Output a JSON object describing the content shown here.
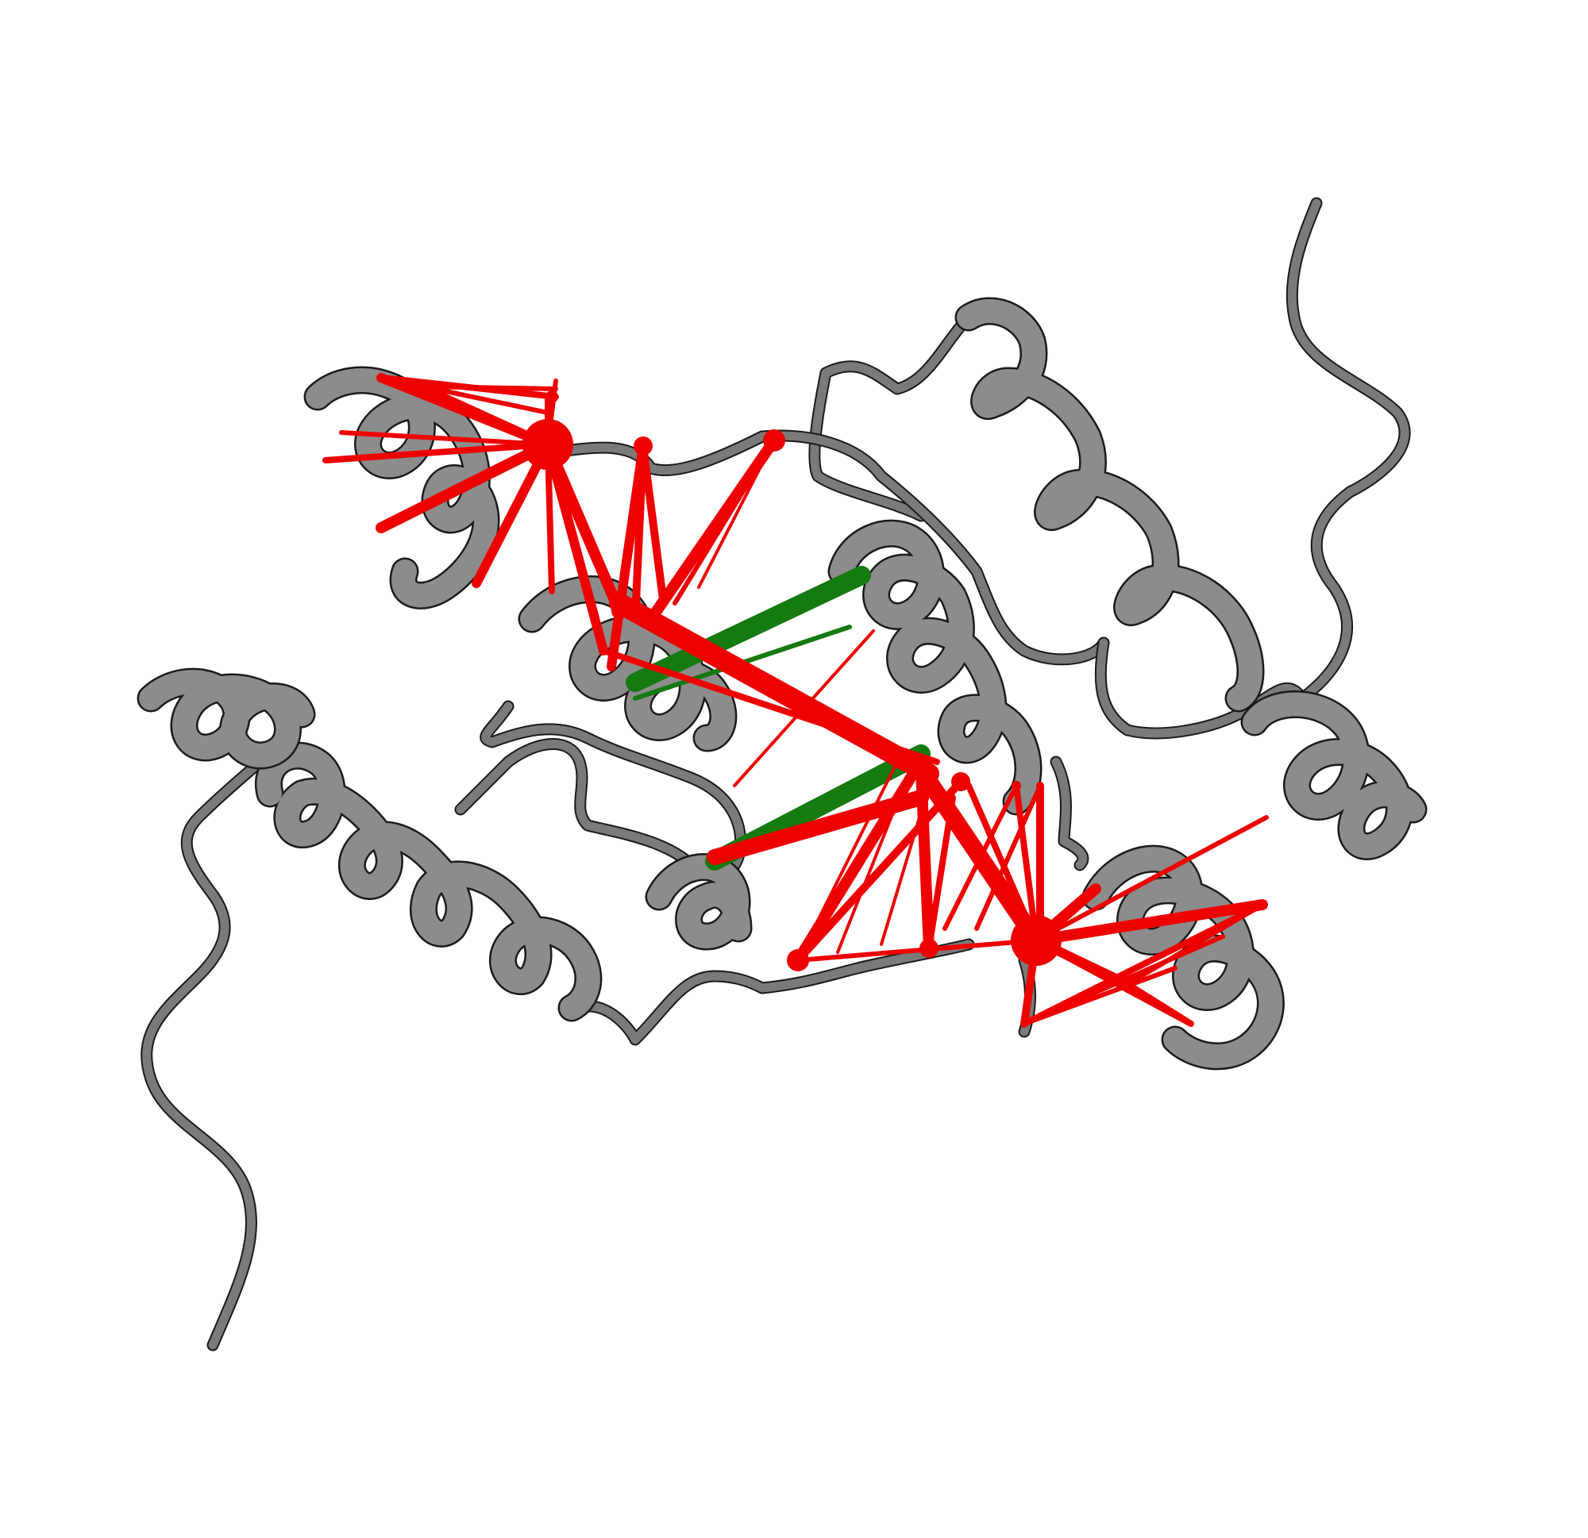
{
  "image": {
    "description_type": "molecular-graphics",
    "colors": {
      "background": "#ffffff",
      "backbone": "#8c8c8c",
      "outline": "#1a1a1a",
      "contact_primary": "#ee0000",
      "contact_secondary": "#157a10"
    }
  }
}
